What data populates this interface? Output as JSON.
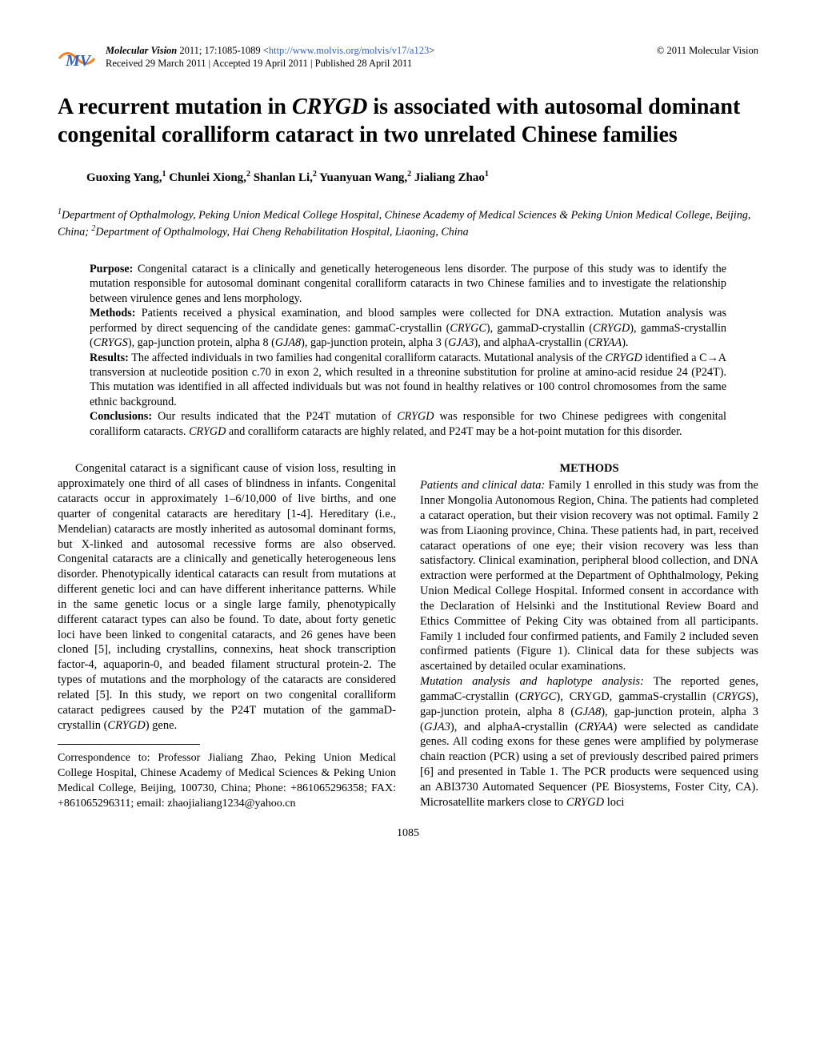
{
  "header": {
    "journal_name": "Molecular Vision",
    "issue": " 2011; 17:1085-1089 ",
    "url_prefix": "<",
    "url": "http://www.molvis.org/molvis/v17/a123",
    "url_suffix": ">",
    "received": "Received 29 March 2011 | Accepted 19 April 2011 | Published 28 April 2011",
    "copyright": "© 2011 Molecular Vision",
    "logo_colors": {
      "blue": "#2f5fd4",
      "orange": "#f58220"
    }
  },
  "title": {
    "pre": "A recurrent mutation in ",
    "gene": "CRYGD",
    "post": " is associated with autosomal dominant congenital coralliform cataract in two unrelated Chinese families"
  },
  "authors_html": "Guoxing Yang,<sup>1</sup> Chunlei Xiong,<sup>2</sup> Shanlan Li,<sup>2</sup> Yuanyuan Wang,<sup>2</sup> Jialiang Zhao<sup>1</sup>",
  "affiliations_html": "<sup>1</sup>Department of Opthalmology, Peking Union Medical College Hospital, Chinese Academy of Medical Sciences & Peking Union Medical College, Beijing, China; <sup>2</sup>Department of Opthalmology, Hai Cheng Rehabilitation Hospital, Liaoning, China",
  "abstract": {
    "purpose_label": "Purpose:",
    "purpose": " Congenital cataract is a clinically and genetically heterogeneous lens disorder. The purpose of this study was to identify the mutation responsible for autosomal dominant congenital coralliform cataracts in two Chinese families and to investigate the relationship between virulence genes and lens morphology.",
    "methods_label": "Methods:",
    "methods_html": " Patients received a physical examination, and blood samples were collected for DNA extraction. Mutation analysis was performed by direct sequencing of the candidate genes: gammaC-crystallin (<em>CRYGC</em>), gammaD-crystallin (<em>CRYGD</em>), gammaS-crystallin (<em>CRYGS</em>), gap-junction protein, alpha 8 (<em>GJA8</em>), gap-junction protein, alpha 3 (<em>GJA3</em>), and alphaA-crystallin (<em>CRYAA</em>).",
    "results_label": "Results:",
    "results_html": " The affected individuals in two families had congenital coralliform cataracts. Mutational analysis of the <em>CRYGD</em> identified a C→A transversion at nucleotide position c.70 in exon 2, which resulted in a threonine substitution for proline at amino-acid residue 24 (P24T). This mutation was identified in all affected individuals but was not found in healthy relatives or 100 control chromosomes from the same ethnic background.",
    "conclusions_label": "Conclusions:",
    "conclusions_html": " Our results indicated that the P24T mutation of <em>CRYGD</em> was responsible for two Chinese pedigrees with congenital coralliform cataracts. <em>CRYGD</em> and coralliform cataracts are highly related, and P24T may be a hot-point mutation for this disorder."
  },
  "body": {
    "intro_html": "Congenital cataract is a significant cause of vision loss, resulting in approximately one third of all cases of blindness in infants. Congenital cataracts occur in approximately 1–6/10,000 of live births, and one quarter of congenital cataracts are hereditary [1-4]. Hereditary (i.e., Mendelian) cataracts are mostly inherited as autosomal dominant forms, but X-linked and autosomal recessive forms are also observed. Congenital cataracts are a clinically and genetically heterogeneous lens disorder. Phenotypically identical cataracts can result from mutations at different genetic loci and can have different inheritance patterns. While in the same genetic locus or a single large family, phenotypically different cataract types can also be found. To date, about forty genetic loci have been linked to congenital cataracts, and 26 genes have been cloned [5], including crystallins, connexins, heat shock transcription factor-4, aquaporin-0, and beaded filament structural protein-2. The types of mutations and the morphology of the cataracts are considered related [5]. In this study, we report on two congenital coralliform cataract pedigrees caused by the P24T mutation of the gammaD-crystallin (<em class=\"gene\">CRYGD</em>) gene.",
    "methods_heading": "METHODS",
    "patients_head": "Patients and clinical data:",
    "patients_html": " Family 1 enrolled in this study was from the Inner Mongolia Autonomous Region, China. The patients had completed a cataract operation, but their vision recovery was not optimal. Family 2 was from Liaoning province, China. These patients had, in part, received cataract operations of one eye; their vision recovery was less than satisfactory. Clinical examination, peripheral blood collection, and DNA extraction were performed at the Department of Ophthalmology, Peking Union Medical College Hospital. Informed consent in accordance with the Declaration of Helsinki and the Institutional Review Board and Ethics Committee of Peking City was obtained from all participants. Family 1 included four confirmed patients, and Family 2 included seven confirmed patients (Figure 1). Clinical data for these subjects was ascertained by detailed ocular examinations.",
    "mutation_head": "Mutation analysis and haplotype analysis:",
    "mutation_html": " The reported genes, gammaC-crystallin (<em class=\"gene\">CRYGC</em>), CRYGD, gammaS-crystallin (<em class=\"gene\">CRYGS</em>), gap-junction protein, alpha 8 (<em class=\"gene\">GJA8</em>), gap-junction protein, alpha 3 (<em class=\"gene\">GJA3</em>), and alphaA-crystallin (<em class=\"gene\">CRYAA</em>) were selected as candidate genes. All coding exons for these genes were amplified by polymerase chain reaction (PCR) using a set of previously described paired primers [6] and presented in Table 1. The PCR products were sequenced using an ABI3730 Automated Sequencer (PE Biosystems, Foster City, CA). Microsatellite markers close to <em class=\"gene\">CRYGD</em> loci"
  },
  "correspondence": "Correspondence to: Professor Jialiang Zhao, Peking Union Medical College Hospital, Chinese Academy of Medical Sciences & Peking Union Medical College, Beijing, 100730, China; Phone: +861065296358; FAX: +861065296311; email: zhaojialiang1234@yahoo.cn",
  "page_number": "1085"
}
